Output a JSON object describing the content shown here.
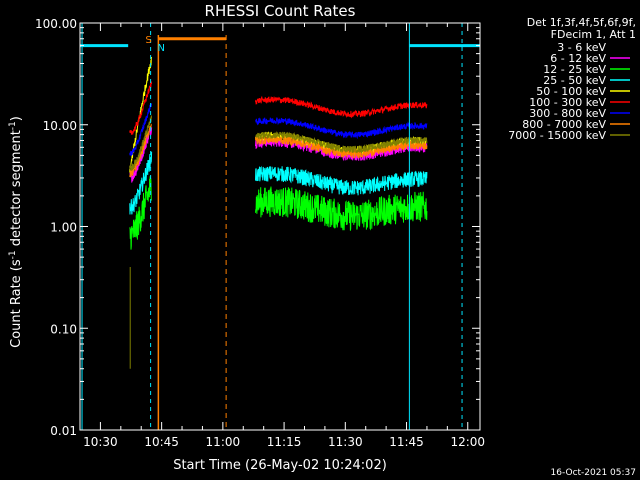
{
  "chart_data": {
    "type": "line",
    "title": "RHESSI Count Rates",
    "xlabel": "Start Time (26-May-02 10:24:02)",
    "ylabel_parts": {
      "pre": "Count Rate (s",
      "sup1": "-1",
      "mid": " detector segment",
      "sup2": "-1",
      "post": ")"
    },
    "y_scale": "log",
    "ylim": [
      0.01,
      100
    ],
    "xlim_minutes_after_1030": [
      -5,
      93
    ],
    "y_ticks": [
      {
        "value": 100,
        "label": "100.00"
      },
      {
        "value": 10,
        "label": "10.00"
      },
      {
        "value": 1,
        "label": "1.00"
      },
      {
        "value": 0.1,
        "label": "0.10"
      },
      {
        "value": 0.01,
        "label": "0.01"
      }
    ],
    "x_ticks": [
      {
        "minutes": 0,
        "label": "10:30"
      },
      {
        "minutes": 15,
        "label": "10:45"
      },
      {
        "minutes": 30,
        "label": "11:00"
      },
      {
        "minutes": 45,
        "label": "11:15"
      },
      {
        "minutes": 60,
        "label": "11:30"
      },
      {
        "minutes": 75,
        "label": "11:45"
      },
      {
        "minutes": 90,
        "label": "12:00"
      }
    ],
    "legend": {
      "header": [
        "Det 1f,3f,4f,5f,6f,9f,",
        "FDecim 1, Att 1"
      ],
      "placement": "right"
    },
    "series": [
      {
        "name": "3 - 6 keV",
        "color": "#000000",
        "level_gap1": 1.3,
        "level_gap2": 1.4,
        "noise": 0.45
      },
      {
        "name": "6 - 12 keV",
        "color": "#ff00ff",
        "level_gap1": 5.5,
        "level_gap2": 6.2,
        "noise": 0.12
      },
      {
        "name": "12 - 25 keV",
        "color": "#00ff00",
        "level_gap1": 1.5,
        "level_gap2": 1.6,
        "noise": 0.35
      },
      {
        "name": "25 - 50 keV",
        "color": "#00ffff",
        "level_gap1": 2.8,
        "level_gap2": 3.0,
        "noise": 0.18
      },
      {
        "name": "50 - 100 keV",
        "color": "#ffff00",
        "level_gap1": 6.5,
        "level_gap2": 7.0,
        "noise": 0.1
      },
      {
        "name": "100 - 300 keV",
        "color": "#ff0000",
        "level_gap1": 15.0,
        "level_gap2": 16.0,
        "noise": 0.07
      },
      {
        "name": "300 - 800 keV",
        "color": "#0000ff",
        "level_gap1": 9.5,
        "level_gap2": 10.0,
        "noise": 0.07
      },
      {
        "name": "800 - 7000 keV",
        "color": "#ff8000",
        "level_gap1": 6.0,
        "level_gap2": 6.5,
        "noise": 0.1
      },
      {
        "name": "7000 - 15000 keV",
        "color": "#808000",
        "level_gap1": 6.8,
        "level_gap2": 7.2,
        "noise": 0.08
      }
    ],
    "annotations": {
      "saa_label": "S",
      "night_label": "N",
      "cyan_bar_value": 60,
      "orange_bar_value": 70
    },
    "colors": {
      "background": "#000000",
      "axes": "#ffffff",
      "cyan_marker": "#00e5ff",
      "orange_marker": "#ff8000"
    }
  },
  "timestamp": "16-Oct-2021 05:37"
}
